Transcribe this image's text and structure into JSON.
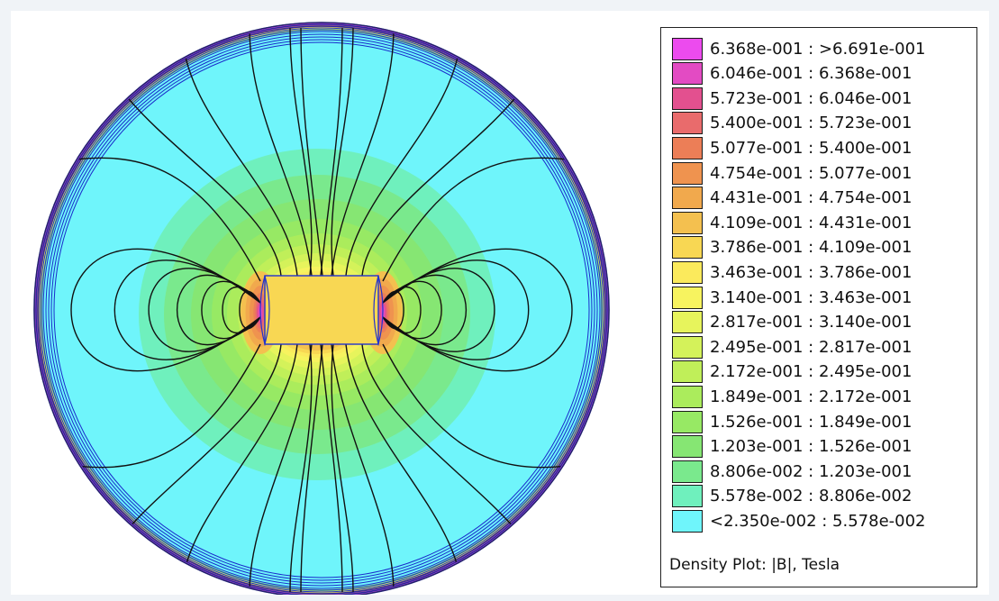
{
  "legend": {
    "caption": "Density Plot: |B|, Tesla",
    "entries": [
      {
        "label": "6.368e-001 : >6.691e-001",
        "color": "#ec4bee"
      },
      {
        "label": "6.046e-001 : 6.368e-001",
        "color": "#e34bc3"
      },
      {
        "label": "5.723e-001 : 6.046e-001",
        "color": "#e3508f"
      },
      {
        "label": "5.400e-001 : 5.723e-001",
        "color": "#e96b6c"
      },
      {
        "label": "5.077e-001 : 5.400e-001",
        "color": "#ec7e57"
      },
      {
        "label": "4.754e-001 : 5.077e-001",
        "color": "#ef934f"
      },
      {
        "label": "4.431e-001 : 4.754e-001",
        "color": "#f1a94d"
      },
      {
        "label": "4.109e-001 : 4.431e-001",
        "color": "#f4c04f"
      },
      {
        "label": "3.786e-001 : 4.109e-001",
        "color": "#f8d753"
      },
      {
        "label": "3.463e-001 : 3.786e-001",
        "color": "#fbea5c"
      },
      {
        "label": "3.140e-001 : 3.463e-001",
        "color": "#f7f35f"
      },
      {
        "label": "2.817e-001 : 3.140e-001",
        "color": "#e7f45c"
      },
      {
        "label": "2.495e-001 : 2.817e-001",
        "color": "#d4f25a"
      },
      {
        "label": "2.172e-001 : 2.495e-001",
        "color": "#c0ef59"
      },
      {
        "label": "1.849e-001 : 2.172e-001",
        "color": "#abec5c"
      },
      {
        "label": "1.526e-001 : 1.849e-001",
        "color": "#97e964"
      },
      {
        "label": "1.203e-001 : 1.526e-001",
        "color": "#86e673"
      },
      {
        "label": "8.806e-002 : 1.203e-001",
        "color": "#7ae98d"
      },
      {
        "label": "5.578e-002 : 8.806e-002",
        "color": "#6ff0bd"
      },
      {
        "label": "<2.350e-002 : 5.578e-002",
        "color": "#6ff5fb"
      }
    ]
  },
  "colors": {
    "domain_fill": "#6ff5fb",
    "flux_line": "#111111",
    "boundary": "#1a2ccc",
    "magnet_outline": "#2233cc"
  }
}
